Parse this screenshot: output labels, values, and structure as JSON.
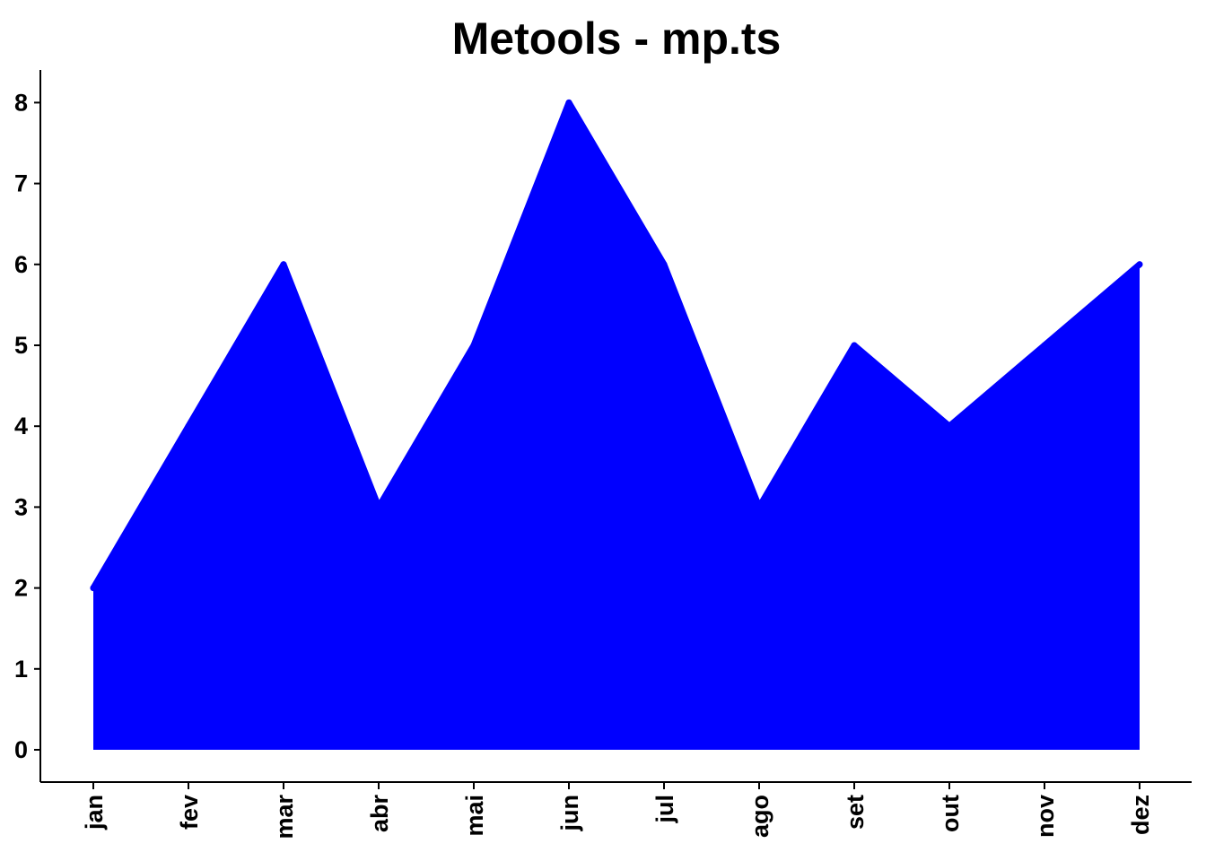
{
  "chart_data": {
    "type": "area",
    "title": "Metools - mp.ts",
    "xlabel": "",
    "ylabel": "",
    "categories": [
      "jan",
      "fev",
      "mar",
      "abr",
      "mai",
      "jun",
      "jul",
      "ago",
      "set",
      "out",
      "nov",
      "dez"
    ],
    "series": [
      {
        "values": [
          2,
          4,
          6,
          3,
          5,
          8,
          6,
          3,
          5,
          4,
          5,
          6
        ]
      }
    ],
    "yticks": [
      "0",
      "1",
      "2",
      "3",
      "4",
      "5",
      "6",
      "7",
      "8"
    ],
    "ylim": [
      -0.4,
      8.4
    ],
    "grid": false,
    "legend": "none",
    "fill_color": "#0000FF",
    "axis_color": "#000000"
  }
}
